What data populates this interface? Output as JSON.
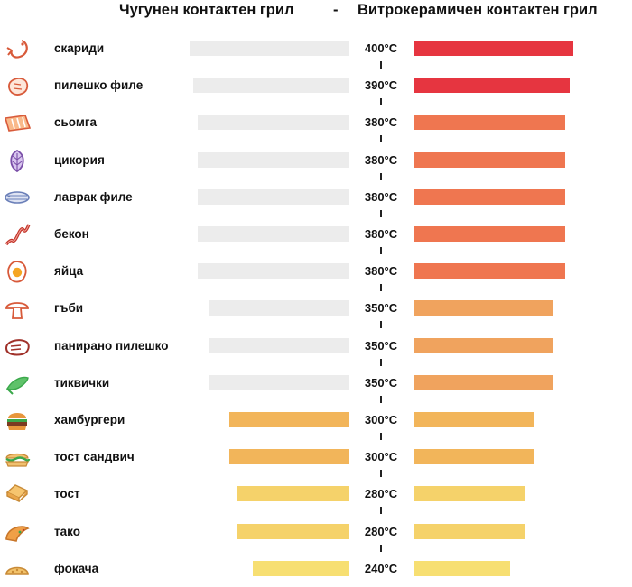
{
  "header": {
    "left_title": "Чугунен контактен грил",
    "dash": "-",
    "right_title": "Витрокерамичен контактен грил"
  },
  "colors": {
    "cast_iron_bar": "#ececec",
    "scale_400": "#e63540",
    "scale_380": "#ef7650",
    "scale_350": "#f0a35e",
    "scale_300": "#f2b55a",
    "scale_280": "#f5d26a",
    "scale_240": "#f7df72",
    "icon_stroke": "#d85a3a",
    "icon_alt": "#7a4fa8",
    "icon_blue": "#6a7fb8",
    "icon_green": "#3aa84a"
  },
  "chart_data": {
    "type": "bar",
    "orientation": "horizontal",
    "unit": "°C",
    "xlim": [
      0,
      400
    ],
    "series": [
      {
        "name": "Чугунен контактен грил",
        "values": [
          400,
          390,
          380,
          380,
          380,
          380,
          380,
          350,
          350,
          350,
          300,
          300,
          280,
          280,
          240
        ]
      },
      {
        "name": "Витрокерамичен контактен грил",
        "values": [
          400,
          390,
          380,
          380,
          380,
          380,
          380,
          350,
          350,
          350,
          300,
          300,
          280,
          280,
          240
        ]
      }
    ],
    "rows": [
      {
        "label": "скариди",
        "value": 400,
        "value_label": "400°C",
        "icon": "shrimp-icon"
      },
      {
        "label": "пилешко филе",
        "value": 390,
        "value_label": "390°C",
        "icon": "chicken-fillet-icon"
      },
      {
        "label": "сьомга",
        "value": 380,
        "value_label": "380°C",
        "icon": "salmon-icon"
      },
      {
        "label": "цикория",
        "value": 380,
        "value_label": "380°C",
        "icon": "chicory-icon"
      },
      {
        "label": "лаврак филе",
        "value": 380,
        "value_label": "380°C",
        "icon": "fish-icon"
      },
      {
        "label": "бекон",
        "value": 380,
        "value_label": "380°C",
        "icon": "bacon-icon"
      },
      {
        "label": "яйца",
        "value": 380,
        "value_label": "380°C",
        "icon": "egg-icon"
      },
      {
        "label": "гъби",
        "value": 350,
        "value_label": "350°C",
        "icon": "mushroom-icon"
      },
      {
        "label": "панирано пилешко",
        "value": 350,
        "value_label": "350°C",
        "icon": "steak-icon"
      },
      {
        "label": "тиквички",
        "value": 350,
        "value_label": "350°C",
        "icon": "zucchini-icon"
      },
      {
        "label": "хамбургери",
        "value": 300,
        "value_label": "300°C",
        "icon": "burger-icon"
      },
      {
        "label": "тост сандвич",
        "value": 300,
        "value_label": "300°C",
        "icon": "sandwich-icon"
      },
      {
        "label": "тост",
        "value": 280,
        "value_label": "280°C",
        "icon": "toast-icon"
      },
      {
        "label": "тако",
        "value": 280,
        "value_label": "280°C",
        "icon": "taco-icon"
      },
      {
        "label": "фокача",
        "value": 240,
        "value_label": "240°C",
        "icon": "focaccia-icon"
      }
    ]
  }
}
